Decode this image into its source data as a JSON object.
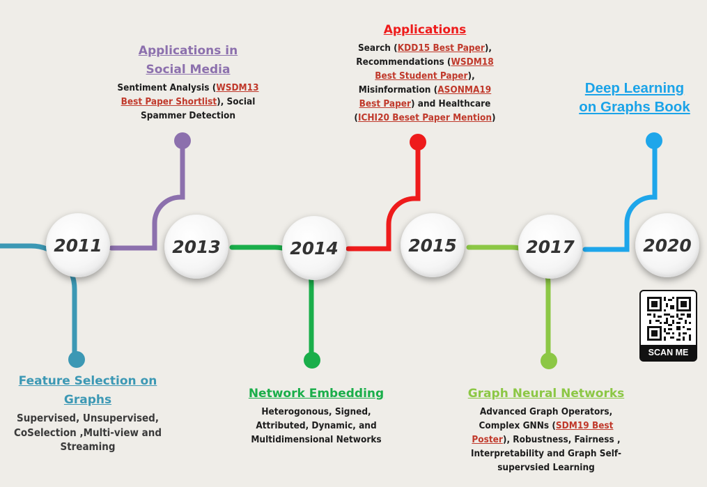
{
  "years": [
    "2011",
    "2013",
    "2014",
    "2015",
    "2017",
    "2020"
  ],
  "colors": {
    "2011": "#3c98b4",
    "2013": "#8c70ad",
    "2014": "#1aae4a",
    "2015": "#ee1b1b",
    "2017": "#8cc745",
    "2020": "#1ea6ea"
  },
  "feature_selection": {
    "title_l1": "Feature Selection on",
    "title_l2": "Graphs",
    "l1": "Supervised, Unsupervised,",
    "l2": "CoSelection ,Multi-view and",
    "l3": "Streaming"
  },
  "social_media": {
    "title_l1": "Applications in",
    "title_l2": "Social Media",
    "l1_pre": "Sentiment Analysis (",
    "l1_link": "WSDM13",
    "l2_link": "Best Paper Shortlist",
    "l2_post": "), Social",
    "l3": "Spammer Detection"
  },
  "network_embedding": {
    "title": "Network Embedding",
    "l1": "Heterogonous, Signed,",
    "l2": "Attributed, Dynamic, and",
    "l3": "Multidimensional  Networks"
  },
  "applications": {
    "title": "Applications",
    "l1_pre": "Search (",
    "l1_link": "KDD15 Best Paper",
    "l1_post": "),",
    "l2_pre": "Recommendations (",
    "l2_link": "WSDM18",
    "l3_link": "Best Student Paper",
    "l3_post": "),",
    "l4_pre": "Misinformation (",
    "l4_link": "ASONMA19",
    "l5_link": "Best Paper",
    "l5_post": ") and Healthcare",
    "l6_pre": "(",
    "l6_link": "ICHI20 Beset Paper Mention",
    "l6_post": ")"
  },
  "gnn": {
    "title": "Graph Neural Networks",
    "l1": "Advanced Graph Operators,",
    "l2_pre": "Complex GNNs (",
    "l2_link": "SDM19 Best",
    "l3_link": "Poster",
    "l3_post": "), Robustness, Fairness ,",
    "l4": "Interpretability and Graph Self-",
    "l5": "supervsied Learning"
  },
  "book": {
    "l1": "Deep Learning",
    "l2": "on Graphs Book"
  },
  "qr": {
    "label": "SCAN ME"
  }
}
